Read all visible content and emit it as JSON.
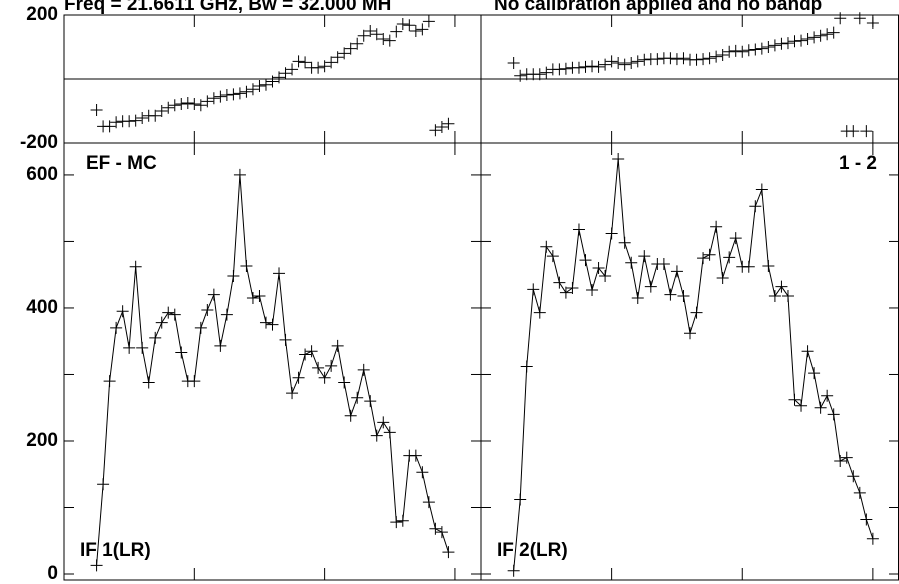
{
  "chart_data": [
    {
      "type": "scatter",
      "title": "Freq = 21.6611 GHz, Bw = 32.000 MH",
      "xlim": [
        0,
        64
      ],
      "xticks": [
        20,
        40,
        60
      ],
      "ylim": [
        -200,
        200
      ],
      "yticks": [
        -200,
        200
      ],
      "reference_line": 0,
      "x": [
        5,
        6,
        7,
        8,
        9,
        10,
        11,
        12,
        13,
        14,
        15,
        16,
        17,
        18,
        19,
        20,
        21,
        22,
        23,
        24,
        25,
        26,
        27,
        28,
        29,
        30,
        31,
        32,
        33,
        34,
        35,
        36,
        37,
        38,
        39,
        40,
        41,
        42,
        43,
        44,
        45,
        46,
        47,
        48,
        49,
        50,
        51,
        52,
        53,
        54,
        55,
        56,
        57,
        58,
        59
      ],
      "values": [
        -97,
        -148,
        -148,
        -135,
        -132,
        -132,
        -130,
        -122,
        -115,
        -115,
        -100,
        -90,
        -82,
        -78,
        -75,
        -78,
        -82,
        -70,
        -60,
        -55,
        -50,
        -48,
        -45,
        -40,
        -32,
        -22,
        -18,
        -8,
        5,
        18,
        30,
        55,
        52,
        35,
        35,
        40,
        52,
        68,
        80,
        95,
        110,
        135,
        150,
        140,
        125,
        120,
        148,
        172,
        168,
        150,
        155,
        180,
        -160,
        -150,
        -140
      ]
    },
    {
      "type": "scatter",
      "title": "No calibration applied and no bandp",
      "xlim": [
        0,
        64
      ],
      "xticks": [
        20,
        40,
        60
      ],
      "ylim": [
        -200,
        200
      ],
      "reference_line": 0,
      "x": [
        5,
        6,
        7,
        8,
        9,
        10,
        11,
        12,
        13,
        14,
        15,
        16,
        17,
        18,
        19,
        20,
        21,
        22,
        23,
        24,
        25,
        26,
        27,
        28,
        29,
        30,
        31,
        32,
        33,
        34,
        35,
        36,
        37,
        38,
        39,
        40,
        41,
        42,
        43,
        44,
        45,
        46,
        47,
        48,
        49,
        50,
        51,
        52,
        53,
        54,
        55,
        56,
        57,
        58,
        59,
        60
      ],
      "values": [
        50,
        10,
        15,
        15,
        15,
        20,
        30,
        30,
        32,
        35,
        35,
        38,
        40,
        38,
        45,
        55,
        50,
        45,
        50,
        55,
        60,
        62,
        62,
        65,
        65,
        62,
        65,
        60,
        60,
        62,
        65,
        70,
        75,
        85,
        88,
        85,
        90,
        92,
        95,
        100,
        105,
        110,
        112,
        118,
        120,
        125,
        130,
        135,
        140,
        145,
        190,
        -163,
        -163,
        190,
        -163,
        175
      ]
    },
    {
      "type": "line",
      "label_top": "EF - MC",
      "label_bottom": "IF 1(LR)",
      "xlim": [
        0,
        64
      ],
      "xticks": [
        20,
        40,
        60
      ],
      "ylim": [
        -9,
        648
      ],
      "yticks": [
        0,
        200,
        400,
        600
      ],
      "minor_yticks": [
        100,
        300,
        500
      ],
      "x": [
        5,
        6,
        7,
        8,
        9,
        10,
        11,
        12,
        13,
        14,
        15,
        16,
        17,
        18,
        19,
        20,
        21,
        22,
        23,
        24,
        25,
        26,
        27,
        28,
        29,
        30,
        31,
        32,
        33,
        34,
        35,
        36,
        37,
        38,
        39,
        40,
        41,
        42,
        43,
        44,
        45,
        46,
        47,
        48,
        49,
        50,
        51,
        52,
        53,
        54,
        55,
        56,
        57,
        58,
        59
      ],
      "values": [
        13,
        135,
        290,
        370,
        395,
        340,
        462,
        340,
        288,
        355,
        378,
        393,
        390,
        333,
        290,
        290,
        370,
        397,
        420,
        343,
        390,
        448,
        600,
        463,
        415,
        418,
        378,
        375,
        452,
        352,
        272,
        295,
        330,
        335,
        310,
        295,
        313,
        343,
        288,
        238,
        265,
        307,
        260,
        208,
        228,
        213,
        78,
        80,
        178,
        178,
        153,
        108,
        68,
        63,
        33
      ]
    },
    {
      "type": "line",
      "label_top": "1 - 2",
      "label_bottom": "IF 2(LR)",
      "xlim": [
        0,
        64
      ],
      "xticks": [
        20,
        40,
        60
      ],
      "ylim": [
        -9,
        648
      ],
      "x": [
        5,
        6,
        7,
        8,
        9,
        10,
        11,
        12,
        13,
        14,
        15,
        16,
        17,
        18,
        19,
        20,
        21,
        22,
        23,
        24,
        25,
        26,
        27,
        28,
        29,
        30,
        31,
        32,
        33,
        34,
        35,
        36,
        37,
        38,
        39,
        40,
        41,
        42,
        43,
        44,
        45,
        46,
        47,
        48,
        49,
        50,
        51,
        52,
        53,
        54,
        55,
        56,
        57,
        58,
        59,
        60
      ],
      "values": [
        5,
        112,
        312,
        428,
        393,
        492,
        478,
        438,
        423,
        430,
        518,
        472,
        427,
        460,
        448,
        512,
        624,
        498,
        468,
        415,
        478,
        432,
        466,
        466,
        420,
        455,
        418,
        362,
        393,
        475,
        480,
        522,
        445,
        476,
        505,
        462,
        462,
        553,
        578,
        463,
        418,
        432,
        418,
        262,
        253,
        335,
        302,
        250,
        268,
        240,
        170,
        175,
        147,
        122,
        82,
        53
      ]
    }
  ]
}
